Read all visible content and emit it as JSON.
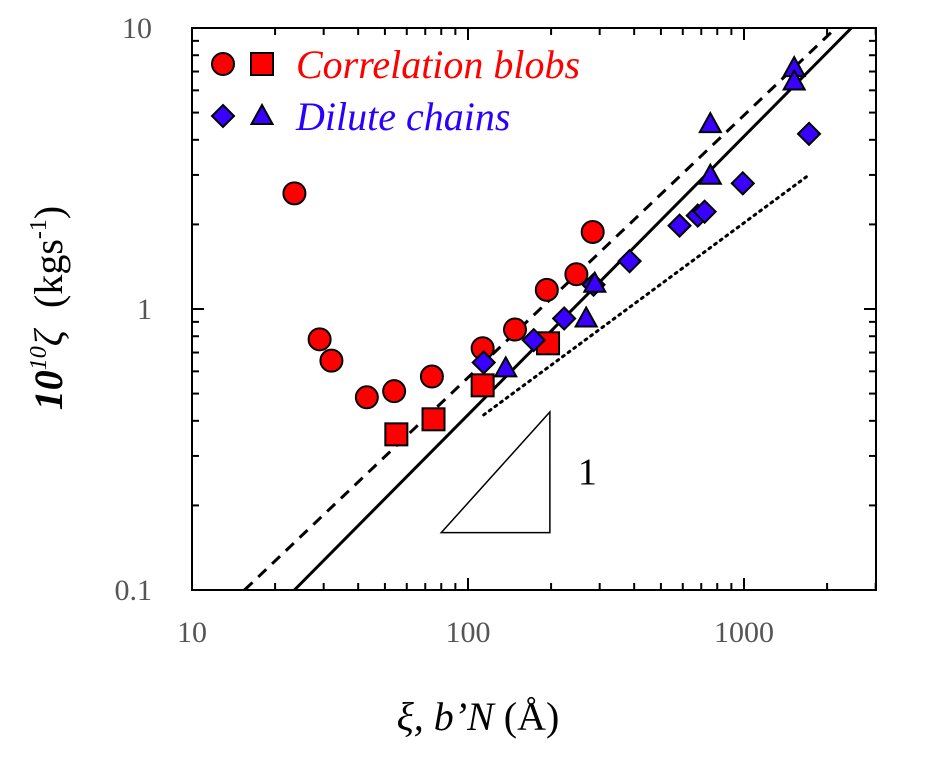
{
  "chart_data": {
    "type": "scatter",
    "x_scale": "log",
    "y_scale": "log",
    "xlim": [
      10,
      3000
    ],
    "ylim": [
      0.1,
      10
    ],
    "x_ticks": [
      {
        "value": 10,
        "label": "10"
      },
      {
        "value": 100,
        "label": "100"
      },
      {
        "value": 1000,
        "label": "1000"
      }
    ],
    "y_ticks": [
      {
        "value": 0.1,
        "label": "0.1"
      },
      {
        "value": 1,
        "label": "1"
      },
      {
        "value": 10,
        "label": "10"
      }
    ],
    "xlabel": {
      "main": "ξ, b’N",
      "unit": " (Å)"
    },
    "ylabel": {
      "prefix": "10",
      "exponent": "10",
      "symbol": "ζ",
      "unit_main": "(kgs",
      "unit_exp": "-1",
      "unit_end": ")"
    },
    "colors": {
      "red": "#ff0000",
      "blue": "#3a00ff",
      "legend_red_text": "#ff0000",
      "legend_blue_text": "#2b00ff"
    },
    "legend": [
      {
        "label": "Correlation blobs",
        "markers": [
          "circle",
          "square"
        ],
        "color": "red"
      },
      {
        "label": "Dilute chains",
        "markers": [
          "diamond",
          "triangle"
        ],
        "color": "blue"
      }
    ],
    "series": [
      {
        "name": "Correlation blobs (circles)",
        "marker": "circle",
        "color": "red",
        "points": [
          [
            23.5,
            2.58
          ],
          [
            29,
            0.78
          ],
          [
            32,
            0.655
          ],
          [
            43,
            0.485
          ],
          [
            54,
            0.51
          ],
          [
            74,
            0.575
          ],
          [
            113,
            0.725
          ],
          [
            148,
            0.845
          ],
          [
            193,
            1.17
          ],
          [
            247,
            1.33
          ],
          [
            283,
            1.88
          ]
        ]
      },
      {
        "name": "Correlation blobs (squares)",
        "marker": "square",
        "color": "red",
        "points": [
          [
            55,
            0.358
          ],
          [
            75,
            0.405
          ],
          [
            113,
            0.535
          ],
          [
            195,
            0.755
          ]
        ]
      },
      {
        "name": "Dilute chains (diamonds)",
        "marker": "diamond",
        "color": "blue",
        "points": [
          [
            114,
            0.645
          ],
          [
            173,
            0.775
          ],
          [
            223,
            0.925
          ],
          [
            285,
            1.22
          ],
          [
            385,
            1.48
          ],
          [
            584,
            1.98
          ],
          [
            680,
            2.15
          ],
          [
            720,
            2.22
          ],
          [
            990,
            2.8
          ],
          [
            1720,
            4.2
          ]
        ]
      },
      {
        "name": "Dilute chains (triangles)",
        "marker": "triangle",
        "color": "blue",
        "points": [
          [
            137,
            0.615
          ],
          [
            268,
            0.925
          ],
          [
            288,
            1.23
          ],
          [
            755,
            4.55
          ],
          [
            755,
            2.98
          ],
          [
            1520,
            7.2
          ],
          [
            1520,
            6.45
          ]
        ]
      }
    ],
    "lines": [
      {
        "name": "dashed guide",
        "style": "dashed",
        "points": [
          [
            15.5,
            0.1
          ],
          [
            2150,
            10
          ]
        ]
      },
      {
        "name": "solid guide",
        "style": "solid",
        "points": [
          [
            23.5,
            0.1
          ],
          [
            2450,
            10
          ]
        ]
      },
      {
        "name": "dotted guide",
        "style": "dotted",
        "points": [
          [
            114,
            0.42
          ],
          [
            1720,
            3.0
          ]
        ]
      }
    ],
    "slope_triangle": {
      "label": "1",
      "x": [
        80,
        198
      ],
      "y": [
        0.16,
        0.43
      ]
    }
  }
}
